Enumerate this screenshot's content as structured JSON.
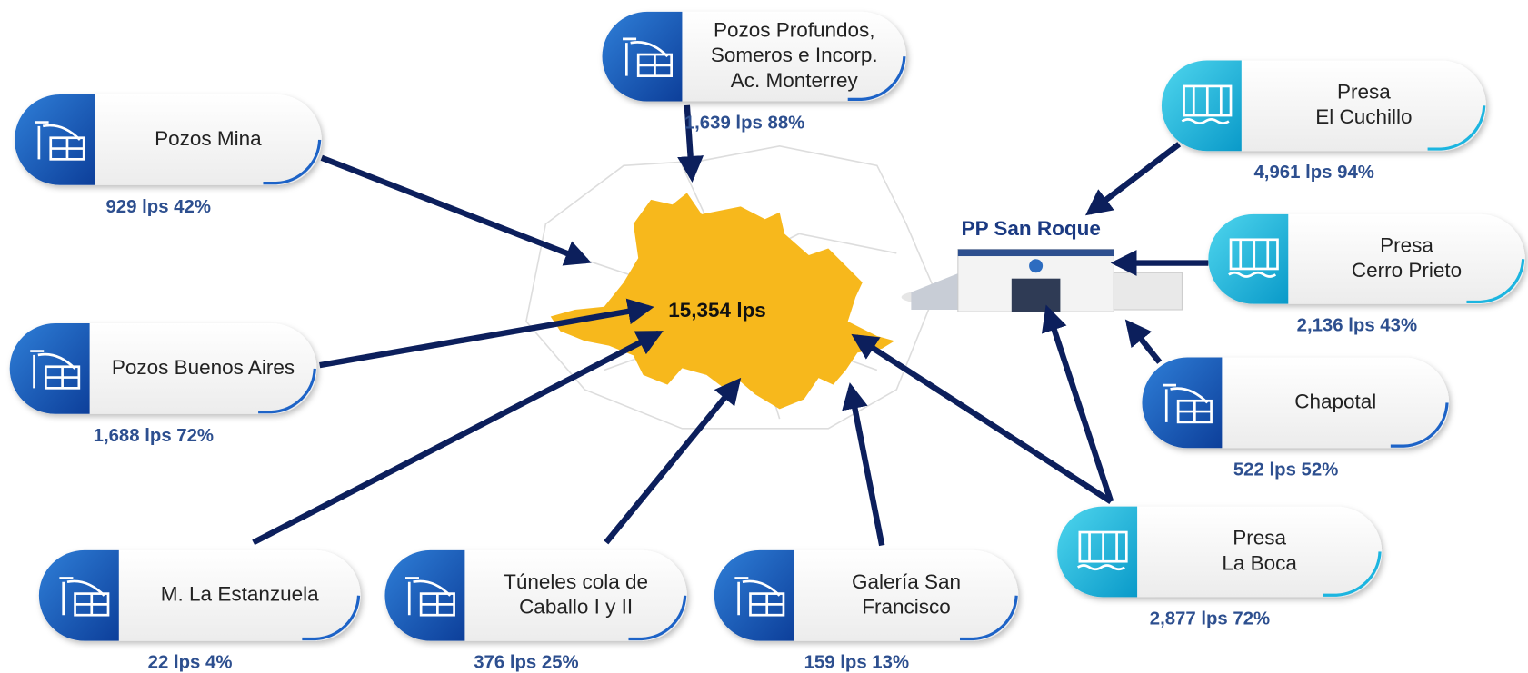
{
  "center": {
    "label": "15,354 lps"
  },
  "plant": {
    "label": "PP San Roque"
  },
  "nodes": [
    {
      "kind": "well",
      "label": [
        "Pozos Profundos,",
        "Someros e Incorp.",
        "Ac. Monterrey"
      ],
      "stat": "1,639 lps 88%"
    },
    {
      "kind": "well",
      "label": [
        "Pozos Mina"
      ],
      "stat": "929 lps 42%"
    },
    {
      "kind": "well",
      "label": [
        "Pozos Buenos Aires"
      ],
      "stat": "1,688 lps 72%"
    },
    {
      "kind": "well",
      "label": [
        "M. La Estanzuela"
      ],
      "stat": "22 lps 4%"
    },
    {
      "kind": "well",
      "label": [
        "Túneles cola de",
        "Caballo I y II"
      ],
      "stat": "376 lps 25%"
    },
    {
      "kind": "well",
      "label": [
        "Galería San",
        "Francisco"
      ],
      "stat": "159 lps 13%"
    },
    {
      "kind": "dam",
      "label": [
        "Presa",
        "El Cuchillo"
      ],
      "stat": "4,961 lps 94%"
    },
    {
      "kind": "dam",
      "label": [
        "Presa",
        "Cerro Prieto"
      ],
      "stat": "2,136 lps 43%"
    },
    {
      "kind": "well",
      "label": [
        "Chapotal"
      ],
      "stat": "522 lps 52%"
    },
    {
      "kind": "dam",
      "label": [
        "Presa",
        "La Boca"
      ],
      "stat": "2,877 lps 72%"
    }
  ]
}
